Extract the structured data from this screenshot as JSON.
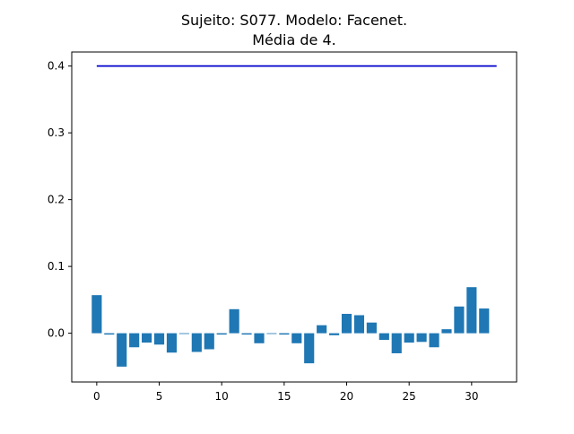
{
  "chart_data": {
    "type": "bar",
    "title": "Sujeito: S077. Modelo: Facenet.",
    "subtitle": "Média de 4.",
    "xlabel": "",
    "ylabel": "",
    "x": [
      0,
      1,
      2,
      3,
      4,
      5,
      6,
      7,
      8,
      9,
      10,
      11,
      12,
      13,
      14,
      15,
      16,
      17,
      18,
      19,
      20,
      21,
      22,
      23,
      24,
      25,
      26,
      27,
      28,
      29,
      30,
      31
    ],
    "values": [
      0.057,
      -0.002,
      -0.05,
      -0.021,
      -0.014,
      -0.017,
      -0.029,
      0.0,
      -0.028,
      -0.024,
      -0.002,
      0.036,
      -0.002,
      -0.015,
      0.0,
      -0.002,
      -0.015,
      -0.045,
      0.012,
      -0.003,
      0.029,
      0.027,
      0.016,
      -0.01,
      -0.03,
      -0.014,
      -0.013,
      -0.021,
      0.006,
      0.04,
      0.069,
      0.037
    ],
    "bar_color": "#1f77b4",
    "threshold_line": {
      "value": 0.4,
      "x_range": [
        0,
        32
      ],
      "color": "#0000cc"
    },
    "xlim": [
      -2.0,
      33.6
    ],
    "ylim": [
      -0.073,
      0.421
    ],
    "xticks": [
      0,
      5,
      10,
      15,
      20,
      25,
      30
    ],
    "yticks": [
      0.0,
      0.1,
      0.2,
      0.3,
      0.4
    ],
    "ytick_labels": [
      "0.0",
      "0.1",
      "0.2",
      "0.3",
      "0.4"
    ],
    "grid": false,
    "legend": "none"
  }
}
